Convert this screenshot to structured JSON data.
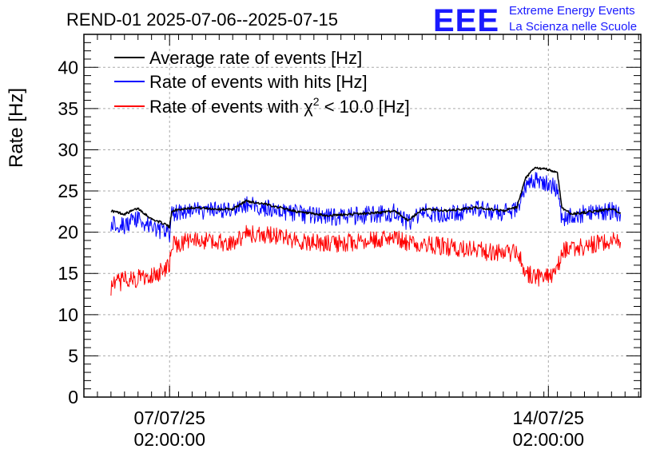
{
  "title": "REND-01 2025-07-06--2025-07-15",
  "logo": {
    "mark": "EEE",
    "line1": "Extreme Energy Events",
    "line2": "La Scienza nelle Scuole",
    "color": "#1a1aff"
  },
  "chart_data": {
    "type": "line",
    "title": "REND-01 2025-07-06--2025-07-15",
    "xlabel": "",
    "ylabel": "Rate [Hz]",
    "ylim": [
      0,
      44
    ],
    "yticks": [
      0,
      5,
      10,
      15,
      20,
      25,
      30,
      35,
      40
    ],
    "xlim": [
      "2025-07-05T12:00",
      "2025-07-15T19:00"
    ],
    "xticks": [
      {
        "x": "2025-07-07T02:00",
        "label_date": "07/07/25",
        "label_time": "02:00:00"
      },
      {
        "x": "2025-07-14T02:00",
        "label_date": "14/07/25",
        "label_time": "02:00:00"
      }
    ],
    "grid": true,
    "legend_position": "top-left",
    "series": [
      {
        "name": "Average rate of events [Hz]",
        "color": "#000000",
        "points": [
          [
            "2025-07-06T00:00",
            22.6
          ],
          [
            "2025-07-06T06:00",
            22.2
          ],
          [
            "2025-07-06T12:00",
            22.9
          ],
          [
            "2025-07-06T18:00",
            21.6
          ],
          [
            "2025-07-07T00:00",
            21.0
          ],
          [
            "2025-07-07T02:00",
            20.6
          ],
          [
            "2025-07-07T03:00",
            22.6
          ],
          [
            "2025-07-07T12:00",
            23.0
          ],
          [
            "2025-07-08T00:00",
            22.8
          ],
          [
            "2025-07-08T06:00",
            22.8
          ],
          [
            "2025-07-08T12:00",
            23.8
          ],
          [
            "2025-07-09T00:00",
            23.2
          ],
          [
            "2025-07-09T12:00",
            22.4
          ],
          [
            "2025-07-10T00:00",
            22.0
          ],
          [
            "2025-07-10T12:00",
            22.2
          ],
          [
            "2025-07-11T00:00",
            22.4
          ],
          [
            "2025-07-11T06:00",
            22.6
          ],
          [
            "2025-07-11T12:00",
            21.4
          ],
          [
            "2025-07-11T18:00",
            22.8
          ],
          [
            "2025-07-12T06:00",
            22.6
          ],
          [
            "2025-07-12T18:00",
            23.0
          ],
          [
            "2025-07-13T06:00",
            22.6
          ],
          [
            "2025-07-13T12:00",
            23.0
          ],
          [
            "2025-07-13T16:00",
            26.6
          ],
          [
            "2025-07-13T20:00",
            27.8
          ],
          [
            "2025-07-14T02:00",
            27.6
          ],
          [
            "2025-07-14T06:00",
            27.2
          ],
          [
            "2025-07-14T08:00",
            23.0
          ],
          [
            "2025-07-14T12:00",
            22.2
          ],
          [
            "2025-07-14T18:00",
            22.4
          ],
          [
            "2025-07-15T00:00",
            22.6
          ],
          [
            "2025-07-15T06:00",
            22.8
          ],
          [
            "2025-07-15T10:00",
            22.4
          ]
        ]
      },
      {
        "name": "Rate of events with hits [Hz]",
        "color": "#0000ff",
        "points": [
          [
            "2025-07-06T00:00",
            21.2
          ],
          [
            "2025-07-06T06:00",
            20.8
          ],
          [
            "2025-07-06T12:00",
            21.6
          ],
          [
            "2025-07-06T18:00",
            20.6
          ],
          [
            "2025-07-07T00:00",
            20.0
          ],
          [
            "2025-07-07T02:00",
            19.6
          ],
          [
            "2025-07-07T03:00",
            22.4
          ],
          [
            "2025-07-07T12:00",
            22.6
          ],
          [
            "2025-07-08T00:00",
            22.6
          ],
          [
            "2025-07-08T06:00",
            22.6
          ],
          [
            "2025-07-08T12:00",
            23.4
          ],
          [
            "2025-07-09T00:00",
            22.8
          ],
          [
            "2025-07-09T12:00",
            22.2
          ],
          [
            "2025-07-10T00:00",
            21.8
          ],
          [
            "2025-07-10T12:00",
            22.0
          ],
          [
            "2025-07-11T00:00",
            22.2
          ],
          [
            "2025-07-11T06:00",
            22.4
          ],
          [
            "2025-07-11T12:00",
            21.0
          ],
          [
            "2025-07-11T18:00",
            22.4
          ],
          [
            "2025-07-12T06:00",
            22.2
          ],
          [
            "2025-07-12T18:00",
            22.8
          ],
          [
            "2025-07-13T06:00",
            22.4
          ],
          [
            "2025-07-13T12:00",
            22.8
          ],
          [
            "2025-07-13T16:00",
            25.4
          ],
          [
            "2025-07-13T20:00",
            26.2
          ],
          [
            "2025-07-14T02:00",
            25.8
          ],
          [
            "2025-07-14T06:00",
            25.2
          ],
          [
            "2025-07-14T08:00",
            21.6
          ],
          [
            "2025-07-14T12:00",
            22.0
          ],
          [
            "2025-07-14T18:00",
            22.2
          ],
          [
            "2025-07-15T00:00",
            22.4
          ],
          [
            "2025-07-15T06:00",
            22.6
          ],
          [
            "2025-07-15T10:00",
            22.2
          ]
        ]
      },
      {
        "name_prefix": "Rate of events with ",
        "name_symbol": "χ",
        "name_superscript": "2",
        "name_suffix": " < 10.0 [Hz]",
        "color": "#ff0000",
        "points": [
          [
            "2025-07-06T00:00",
            13.4
          ],
          [
            "2025-07-06T06:00",
            14.2
          ],
          [
            "2025-07-06T12:00",
            14.4
          ],
          [
            "2025-07-06T18:00",
            14.8
          ],
          [
            "2025-07-07T00:00",
            15.4
          ],
          [
            "2025-07-07T02:00",
            16.2
          ],
          [
            "2025-07-07T03:00",
            18.4
          ],
          [
            "2025-07-07T12:00",
            19.0
          ],
          [
            "2025-07-08T00:00",
            18.8
          ],
          [
            "2025-07-08T06:00",
            18.8
          ],
          [
            "2025-07-08T12:00",
            19.8
          ],
          [
            "2025-07-09T00:00",
            19.6
          ],
          [
            "2025-07-09T12:00",
            19.0
          ],
          [
            "2025-07-10T00:00",
            18.6
          ],
          [
            "2025-07-10T12:00",
            18.8
          ],
          [
            "2025-07-11T00:00",
            19.2
          ],
          [
            "2025-07-11T06:00",
            19.4
          ],
          [
            "2025-07-11T12:00",
            18.6
          ],
          [
            "2025-07-11T18:00",
            18.6
          ],
          [
            "2025-07-12T06:00",
            18.2
          ],
          [
            "2025-07-12T18:00",
            17.8
          ],
          [
            "2025-07-13T06:00",
            17.4
          ],
          [
            "2025-07-13T12:00",
            17.6
          ],
          [
            "2025-07-13T16:00",
            15.2
          ],
          [
            "2025-07-13T20:00",
            14.4
          ],
          [
            "2025-07-14T02:00",
            14.6
          ],
          [
            "2025-07-14T06:00",
            15.4
          ],
          [
            "2025-07-14T08:00",
            17.6
          ],
          [
            "2025-07-14T12:00",
            18.0
          ],
          [
            "2025-07-14T18:00",
            18.2
          ],
          [
            "2025-07-15T00:00",
            18.6
          ],
          [
            "2025-07-15T06:00",
            19.0
          ],
          [
            "2025-07-15T10:00",
            18.8
          ]
        ]
      }
    ]
  }
}
